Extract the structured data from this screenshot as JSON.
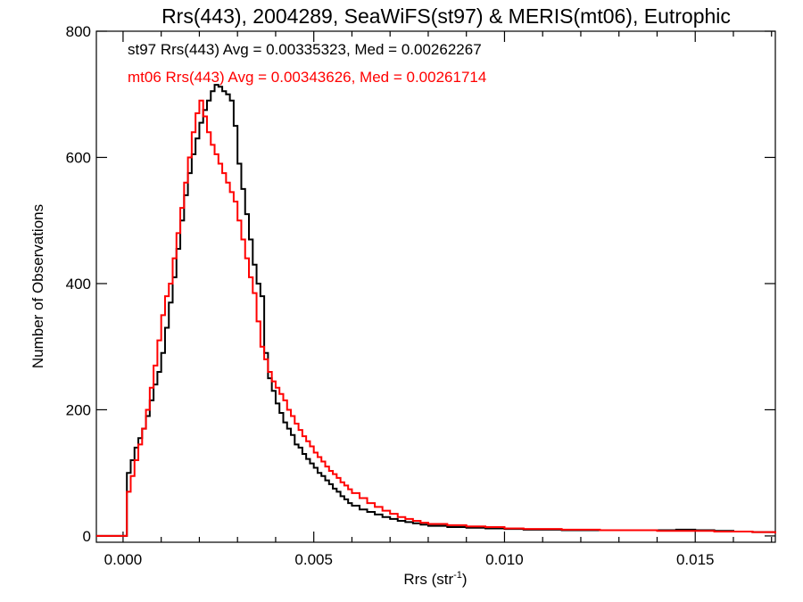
{
  "chart_data": {
    "type": "histogram-step",
    "title": "Rrs(443), 2004289, SeaWiFS(st97) & MERIS(mt06), Eutrophic",
    "xlabel": "Rrs (str",
    "xlabel_sup": "-1",
    "xlabel_close": ")",
    "ylabel": "Number of Observations",
    "xlim": [
      -0.0007,
      0.0171
    ],
    "ylim": [
      -10,
      800
    ],
    "x_ticks": [
      {
        "value": 0.0,
        "label": "0.000"
      },
      {
        "value": 0.005,
        "label": "0.005"
      },
      {
        "value": 0.01,
        "label": "0.010"
      },
      {
        "value": 0.015,
        "label": "0.015"
      }
    ],
    "y_ticks": [
      {
        "value": 0,
        "label": "0"
      },
      {
        "value": 200,
        "label": "200"
      },
      {
        "value": 400,
        "label": "400"
      },
      {
        "value": 600,
        "label": "600"
      },
      {
        "value": 800,
        "label": "800"
      }
    ],
    "annotations": [
      {
        "text": "st97 Rrs(443) Avg = 0.00335323, Med = 0.00262267",
        "color": "#000000"
      },
      {
        "text": "mt06 Rrs(443) Avg = 0.00343626, Med = 0.00261714",
        "color": "#ff0000"
      }
    ],
    "series": [
      {
        "name": "st97",
        "color": "#000000",
        "points": [
          [
            -0.0007,
            0
          ],
          [
            0.0,
            0
          ],
          [
            0.0001,
            100
          ],
          [
            0.0002,
            120
          ],
          [
            0.0003,
            140
          ],
          [
            0.0004,
            155
          ],
          [
            0.0005,
            170
          ],
          [
            0.0006,
            190
          ],
          [
            0.0007,
            215
          ],
          [
            0.0008,
            240
          ],
          [
            0.0009,
            260
          ],
          [
            0.001,
            290
          ],
          [
            0.0011,
            330
          ],
          [
            0.0012,
            370
          ],
          [
            0.0013,
            410
          ],
          [
            0.0014,
            455
          ],
          [
            0.0015,
            500
          ],
          [
            0.0016,
            540
          ],
          [
            0.0017,
            575
          ],
          [
            0.0018,
            605
          ],
          [
            0.0019,
            630
          ],
          [
            0.002,
            655
          ],
          [
            0.0021,
            675
          ],
          [
            0.0022,
            690
          ],
          [
            0.0023,
            705
          ],
          [
            0.0024,
            715
          ],
          [
            0.0025,
            712
          ],
          [
            0.0026,
            705
          ],
          [
            0.0027,
            700
          ],
          [
            0.0028,
            690
          ],
          [
            0.0029,
            650
          ],
          [
            0.003,
            590
          ],
          [
            0.0031,
            550
          ],
          [
            0.0032,
            510
          ],
          [
            0.0033,
            470
          ],
          [
            0.0034,
            430
          ],
          [
            0.0035,
            400
          ],
          [
            0.0036,
            380
          ],
          [
            0.0037,
            290
          ],
          [
            0.0038,
            250
          ],
          [
            0.0039,
            230
          ],
          [
            0.004,
            210
          ],
          [
            0.0041,
            195
          ],
          [
            0.0042,
            180
          ],
          [
            0.0043,
            170
          ],
          [
            0.0044,
            160
          ],
          [
            0.0045,
            145
          ],
          [
            0.0046,
            140
          ],
          [
            0.0047,
            130
          ],
          [
            0.0048,
            122
          ],
          [
            0.0049,
            115
          ],
          [
            0.005,
            108
          ],
          [
            0.0051,
            100
          ],
          [
            0.0052,
            95
          ],
          [
            0.0053,
            88
          ],
          [
            0.0054,
            82
          ],
          [
            0.0055,
            75
          ],
          [
            0.0056,
            70
          ],
          [
            0.0057,
            63
          ],
          [
            0.0058,
            58
          ],
          [
            0.0059,
            52
          ],
          [
            0.006,
            48
          ],
          [
            0.0062,
            42
          ],
          [
            0.0064,
            38
          ],
          [
            0.0066,
            34
          ],
          [
            0.0068,
            30
          ],
          [
            0.007,
            27
          ],
          [
            0.0072,
            24
          ],
          [
            0.0074,
            22
          ],
          [
            0.0076,
            20
          ],
          [
            0.0078,
            18
          ],
          [
            0.008,
            16
          ],
          [
            0.0085,
            14
          ],
          [
            0.009,
            13
          ],
          [
            0.0095,
            12
          ],
          [
            0.01,
            11
          ],
          [
            0.0105,
            10
          ],
          [
            0.011,
            10
          ],
          [
            0.0115,
            9
          ],
          [
            0.012,
            9
          ],
          [
            0.0125,
            9
          ],
          [
            0.013,
            9
          ],
          [
            0.0135,
            9
          ],
          [
            0.014,
            9
          ],
          [
            0.0145,
            10
          ],
          [
            0.015,
            9
          ],
          [
            0.0155,
            8
          ],
          [
            0.016,
            7
          ],
          [
            0.0165,
            6
          ],
          [
            0.0171,
            5
          ]
        ]
      },
      {
        "name": "mt06",
        "color": "#ff0000",
        "points": [
          [
            -0.0007,
            0
          ],
          [
            0.0,
            0
          ],
          [
            0.0001,
            70
          ],
          [
            0.0002,
            95
          ],
          [
            0.0003,
            120
          ],
          [
            0.0004,
            145
          ],
          [
            0.0005,
            170
          ],
          [
            0.0006,
            200
          ],
          [
            0.0007,
            235
          ],
          [
            0.0008,
            270
          ],
          [
            0.0009,
            310
          ],
          [
            0.001,
            350
          ],
          [
            0.0011,
            380
          ],
          [
            0.0012,
            400
          ],
          [
            0.0013,
            440
          ],
          [
            0.0014,
            480
          ],
          [
            0.0015,
            520
          ],
          [
            0.0016,
            560
          ],
          [
            0.0017,
            600
          ],
          [
            0.0018,
            640
          ],
          [
            0.0019,
            670
          ],
          [
            0.002,
            690
          ],
          [
            0.0021,
            665
          ],
          [
            0.0022,
            640
          ],
          [
            0.0023,
            620
          ],
          [
            0.0024,
            605
          ],
          [
            0.0025,
            590
          ],
          [
            0.0026,
            575
          ],
          [
            0.0027,
            560
          ],
          [
            0.0028,
            545
          ],
          [
            0.0029,
            530
          ],
          [
            0.003,
            500
          ],
          [
            0.0031,
            470
          ],
          [
            0.0032,
            440
          ],
          [
            0.0033,
            410
          ],
          [
            0.0034,
            385
          ],
          [
            0.0035,
            340
          ],
          [
            0.0036,
            300
          ],
          [
            0.0037,
            280
          ],
          [
            0.0038,
            260
          ],
          [
            0.0039,
            245
          ],
          [
            0.004,
            235
          ],
          [
            0.0041,
            225
          ],
          [
            0.0042,
            215
          ],
          [
            0.0043,
            200
          ],
          [
            0.0044,
            190
          ],
          [
            0.0045,
            178
          ],
          [
            0.0046,
            168
          ],
          [
            0.0047,
            158
          ],
          [
            0.0048,
            150
          ],
          [
            0.0049,
            142
          ],
          [
            0.005,
            132
          ],
          [
            0.0051,
            125
          ],
          [
            0.0052,
            118
          ],
          [
            0.0053,
            110
          ],
          [
            0.0054,
            103
          ],
          [
            0.0055,
            98
          ],
          [
            0.0056,
            92
          ],
          [
            0.0057,
            85
          ],
          [
            0.0058,
            80
          ],
          [
            0.0059,
            74
          ],
          [
            0.006,
            68
          ],
          [
            0.0062,
            60
          ],
          [
            0.0064,
            52
          ],
          [
            0.0066,
            46
          ],
          [
            0.0068,
            40
          ],
          [
            0.007,
            35
          ],
          [
            0.0072,
            30
          ],
          [
            0.0074,
            27
          ],
          [
            0.0076,
            24
          ],
          [
            0.0078,
            21
          ],
          [
            0.008,
            19
          ],
          [
            0.0085,
            17
          ],
          [
            0.009,
            15
          ],
          [
            0.0095,
            14
          ],
          [
            0.01,
            12
          ],
          [
            0.0105,
            11
          ],
          [
            0.011,
            11
          ],
          [
            0.0115,
            10
          ],
          [
            0.012,
            10
          ],
          [
            0.0125,
            9
          ],
          [
            0.013,
            9
          ],
          [
            0.0135,
            9
          ],
          [
            0.014,
            8
          ],
          [
            0.0145,
            8
          ],
          [
            0.015,
            8
          ],
          [
            0.0155,
            7
          ],
          [
            0.016,
            7
          ],
          [
            0.0165,
            6
          ],
          [
            0.0171,
            4
          ]
        ]
      }
    ]
  }
}
